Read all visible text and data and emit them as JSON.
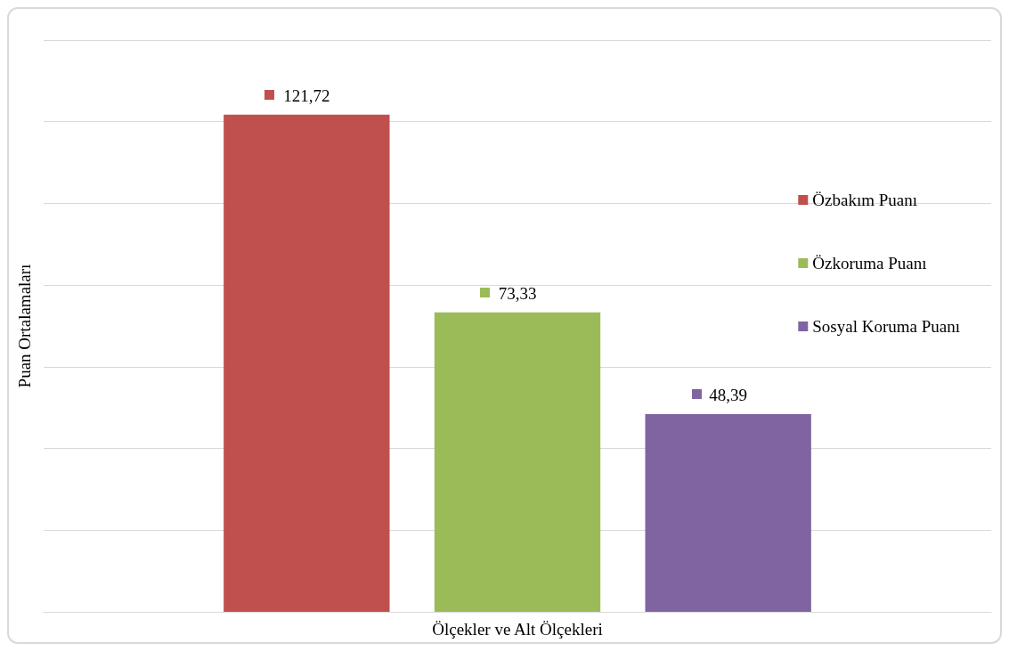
{
  "chart_data": {
    "type": "bar",
    "xlabel": "Ölçekler ve Alt Ölçekleri",
    "ylabel": "Puan Ortalamaları",
    "categories": [
      null
    ],
    "series": [
      {
        "name": "Özbakım Puanı",
        "color": "#c0504d",
        "values": [
          121.72
        ],
        "value_labels": [
          "121,72"
        ]
      },
      {
        "name": "Özkoruma Puanı",
        "color": "#9bbb59",
        "values": [
          73.33
        ],
        "value_labels": [
          "73,33"
        ]
      },
      {
        "name": "Sosyal Koruma Puanı",
        "color": "#8064a2",
        "values": [
          48.39
        ],
        "value_labels": [
          "48,39"
        ]
      }
    ],
    "ylim": [
      0,
      140
    ],
    "yticks": [
      {
        "value": 0,
        "label": null
      },
      {
        "value": 20,
        "label": null
      },
      {
        "value": 40,
        "label": null
      },
      {
        "value": 60,
        "label": null
      },
      {
        "value": 80,
        "label": null
      },
      {
        "value": 100,
        "label": null
      },
      {
        "value": 120,
        "label": null
      },
      {
        "value": 140,
        "label": null
      }
    ],
    "grid": "y",
    "legend": "right",
    "tick_labels": false
  }
}
